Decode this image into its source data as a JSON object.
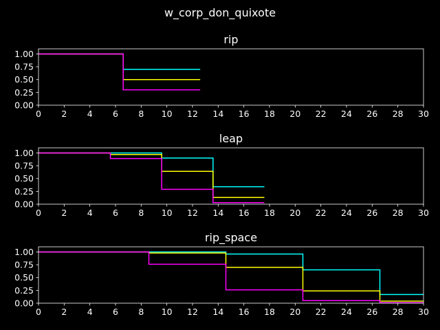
{
  "chart_data": {
    "type": "line",
    "suptitle": "w_corp_don_quixote",
    "xlim": [
      0,
      30
    ],
    "x_ticks": [
      0,
      2,
      4,
      6,
      8,
      10,
      12,
      14,
      16,
      18,
      20,
      22,
      24,
      26,
      28,
      30
    ],
    "y_ticks": [
      "0.00",
      "0.25",
      "0.50",
      "0.75",
      "1.00"
    ],
    "ylim": [
      0,
      1.1
    ],
    "background": "#000000",
    "panels": [
      {
        "title": "rip",
        "series": [
          {
            "color": "#00ffff",
            "x": [
              0,
              6.6,
              12.6
            ],
            "y": [
              1.0,
              0.7,
              0.7
            ]
          },
          {
            "color": "#ffff00",
            "x": [
              0,
              6.6,
              12.6
            ],
            "y": [
              1.0,
              0.5,
              0.5
            ]
          },
          {
            "color": "#ff00ff",
            "x": [
              0,
              6.6,
              12.6
            ],
            "y": [
              1.0,
              0.3,
              0.3
            ]
          }
        ]
      },
      {
        "title": "leap",
        "series": [
          {
            "color": "#00ffff",
            "x": [
              0,
              9.6,
              13.6,
              17.6
            ],
            "y": [
              1.0,
              0.9,
              0.34,
              0.34
            ]
          },
          {
            "color": "#ffff00",
            "x": [
              0,
              5.6,
              9.6,
              13.6,
              17.6
            ],
            "y": [
              1.0,
              0.97,
              0.64,
              0.13,
              0.13
            ]
          },
          {
            "color": "#ff00ff",
            "x": [
              0,
              5.6,
              9.6,
              13.6,
              17.6
            ],
            "y": [
              1.0,
              0.89,
              0.29,
              0.03,
              0.03
            ]
          }
        ]
      },
      {
        "title": "rip_space",
        "series": [
          {
            "color": "#00ffff",
            "x": [
              0,
              14.6,
              20.6,
              26.6,
              30
            ],
            "y": [
              1.0,
              0.96,
              0.65,
              0.17,
              0.17
            ]
          },
          {
            "color": "#ffff00",
            "x": [
              0,
              8.6,
              14.6,
              20.6,
              26.6,
              30
            ],
            "y": [
              1.0,
              0.98,
              0.7,
              0.24,
              0.04,
              0.04
            ]
          },
          {
            "color": "#ff00ff",
            "x": [
              0,
              8.6,
              14.6,
              20.6,
              26.6,
              30
            ],
            "y": [
              1.0,
              0.76,
              0.26,
              0.05,
              0.01,
              0.01
            ]
          }
        ]
      }
    ]
  }
}
